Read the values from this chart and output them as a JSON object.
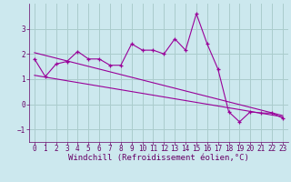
{
  "xlabel": "Windchill (Refroidissement éolien,°C)",
  "x": [
    0,
    1,
    2,
    3,
    4,
    5,
    6,
    7,
    8,
    9,
    10,
    11,
    12,
    13,
    14,
    15,
    16,
    17,
    18,
    19,
    20,
    21,
    22,
    23
  ],
  "y_line": [
    1.8,
    1.1,
    1.6,
    1.7,
    2.1,
    1.8,
    1.8,
    1.55,
    1.55,
    2.4,
    2.15,
    2.15,
    2.0,
    2.6,
    2.15,
    3.6,
    2.4,
    1.4,
    -0.3,
    -0.7,
    -0.3,
    -0.35,
    -0.35,
    -0.55
  ],
  "trend1_x": [
    0,
    23
  ],
  "trend1_y": [
    2.05,
    -0.45
  ],
  "trend2_x": [
    0,
    23
  ],
  "trend2_y": [
    1.15,
    -0.5
  ],
  "ylim": [
    -1.5,
    4.0
  ],
  "xlim": [
    -0.5,
    23.5
  ],
  "yticks": [
    -1,
    0,
    1,
    2,
    3
  ],
  "xticks": [
    0,
    1,
    2,
    3,
    4,
    5,
    6,
    7,
    8,
    9,
    10,
    11,
    12,
    13,
    14,
    15,
    16,
    17,
    18,
    19,
    20,
    21,
    22,
    23
  ],
  "line_color": "#990099",
  "bg_color": "#cce8ee",
  "grid_color": "#aacccc",
  "text_color": "#660066",
  "tick_label_fontsize": 5.5,
  "xlabel_fontsize": 6.5
}
